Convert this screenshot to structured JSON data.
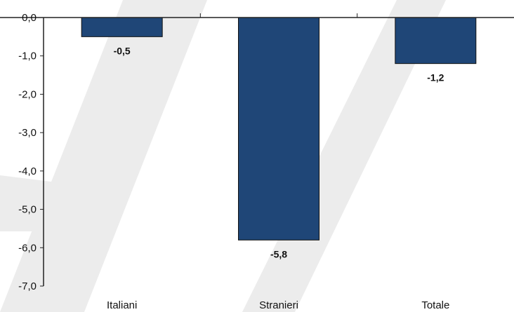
{
  "chart_data": {
    "type": "bar",
    "categories": [
      "Italiani",
      "Stranieri",
      "Totale"
    ],
    "values": [
      -0.5,
      -5.8,
      -1.2
    ],
    "data_labels": [
      "-0,5",
      "-5,8",
      "-1,2"
    ],
    "title": "",
    "xlabel": "",
    "ylabel": "",
    "ylim": [
      -7,
      0
    ],
    "y_ticks": [
      0,
      -1,
      -2,
      -3,
      -4,
      -5,
      -6,
      -7
    ],
    "y_tick_labels": [
      "0,0",
      "-1,0",
      "-2,0",
      "-3,0",
      "-4,0",
      "-5,0",
      "-6,0",
      "-7,0"
    ],
    "grid": false,
    "legend": "none",
    "colors": {
      "bar_fill": "#1f4677",
      "bar_stroke": "#111111",
      "axis": "#222222",
      "watermark": "#ececec"
    }
  }
}
